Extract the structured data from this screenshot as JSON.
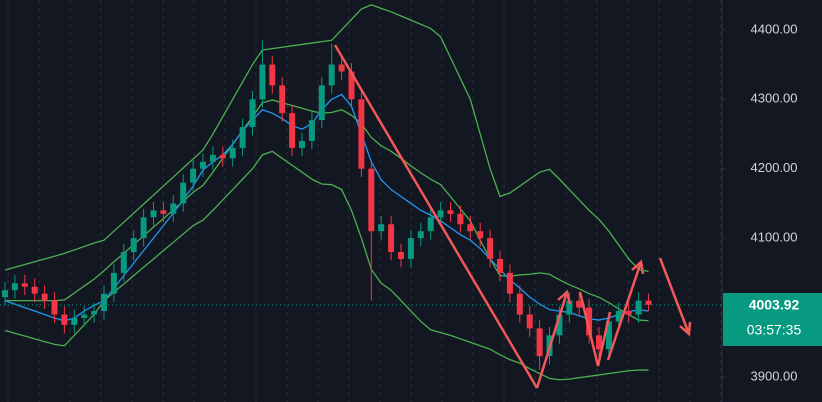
{
  "chart_data": {
    "type": "candlestick",
    "up_color": "#089981",
    "down_color": "#f23645",
    "ylim": [
      3864,
      4443
    ],
    "yticks": [
      {
        "value": 3900,
        "label": "3900.00"
      },
      {
        "value": 4100,
        "label": "4100.00"
      },
      {
        "value": 4200,
        "label": "4200.00"
      },
      {
        "value": 4300,
        "label": "4300.00"
      },
      {
        "value": 4400,
        "label": "4400.00"
      }
    ],
    "countdown": "03:57:35",
    "open": [
      4015,
      4025,
      4035,
      4030,
      4020,
      4010,
      3990,
      3975,
      3985,
      3990,
      3995,
      4020,
      4050,
      4080,
      4100,
      4130,
      4140,
      4135,
      4150,
      4180,
      4200,
      4210,
      4220,
      4215,
      4230,
      4260,
      4300,
      4350,
      4320,
      4280,
      4230,
      4240,
      4270,
      4320,
      4350,
      4340,
      4300,
      4200,
      4110,
      4120,
      4080,
      4070,
      4100,
      4110,
      4130,
      4140,
      4135,
      4120,
      4110,
      4100,
      4070,
      4050,
      4020,
      3990,
      3970,
      3930,
      3960,
      3990,
      4010,
      4000,
      3960,
      3940,
      3980,
      3995,
      3990,
      4010
    ],
    "high": [
      4037,
      4047,
      4047,
      4042,
      4032,
      4022,
      4002,
      3997,
      4002,
      4007,
      4032,
      4062,
      4092,
      4112,
      4142,
      4152,
      4152,
      4162,
      4192,
      4212,
      4222,
      4232,
      4232,
      4242,
      4272,
      4312,
      4385,
      4362,
      4332,
      4292,
      4252,
      4282,
      4332,
      4380,
      4362,
      4352,
      4312,
      4212,
      4132,
      4132,
      4092,
      4112,
      4122,
      4142,
      4152,
      4152,
      4147,
      4132,
      4122,
      4112,
      4082,
      4062,
      4032,
      4002,
      3982,
      3972,
      4002,
      4022,
      4022,
      4012,
      3972,
      3992,
      4007,
      4007,
      4022,
      4020
    ],
    "low": [
      4003,
      4013,
      4018,
      4008,
      3998,
      3978,
      3963,
      3963,
      3973,
      3978,
      3983,
      4008,
      4038,
      4068,
      4088,
      4118,
      4123,
      4123,
      4138,
      4168,
      4188,
      4198,
      4203,
      4203,
      4218,
      4248,
      4288,
      4308,
      4268,
      4218,
      4218,
      4228,
      4258,
      4308,
      4328,
      4288,
      4188,
      4010,
      4098,
      4068,
      4058,
      4058,
      4088,
      4098,
      4118,
      4123,
      4108,
      4098,
      4088,
      4058,
      4038,
      4008,
      3978,
      3958,
      3910,
      3918,
      3948,
      3978,
      3988,
      3948,
      3928,
      3928,
      3968,
      3978,
      3978,
      3995
    ],
    "close": [
      4025,
      4035,
      4030,
      4020,
      4010,
      3990,
      3975,
      3985,
      3990,
      3995,
      4020,
      4050,
      4080,
      4100,
      4130,
      4140,
      4135,
      4150,
      4180,
      4200,
      4210,
      4220,
      4215,
      4230,
      4260,
      4300,
      4350,
      4320,
      4280,
      4230,
      4240,
      4270,
      4320,
      4350,
      4340,
      4300,
      4200,
      4110,
      4120,
      4080,
      4070,
      4100,
      4110,
      4130,
      4140,
      4135,
      4120,
      4110,
      4100,
      4070,
      4050,
      4020,
      3990,
      3970,
      3930,
      3960,
      3990,
      4010,
      4000,
      3960,
      3940,
      3980,
      3995,
      3990,
      4010,
      4003.92
    ],
    "overlays": [
      {
        "color": "#4caf50",
        "values": [
          4054,
          4058,
          4062,
          4066,
          4070,
          4074,
          4078,
          4083,
          4088,
          4093,
          4097,
          4110,
          4123,
          4136,
          4149,
          4162,
          4175,
          4188,
          4201,
          4214,
          4227,
          4250,
          4275,
          4300,
          4325,
          4350,
          4371,
          4373,
          4375,
          4377,
          4379,
          4381,
          4383,
          4385,
          4400,
          4415,
          4430,
          4436,
          4431,
          4426,
          4420,
          4414,
          4408,
          4402,
          4390,
          4360,
          4330,
          4300,
          4250,
          4200,
          4160,
          4165,
          4175,
          4185,
          4195,
          4199,
          4185,
          4170,
          4155,
          4140,
          4127,
          4110,
          4090,
          4070,
          4055,
          4052
        ]
      },
      {
        "color": "#4caf50",
        "values": [
          4010,
          4010,
          4010,
          4010,
          4010,
          4010,
          4011,
          4021,
          4031,
          4041,
          4053,
          4066,
          4078,
          4091,
          4103,
          4116,
          4128,
          4141,
          4153,
          4166,
          4176,
          4195,
          4215,
          4235,
          4255,
          4275,
          4295,
          4299,
          4295,
          4291,
          4287,
          4283,
          4280,
          4281,
          4285,
          4277,
          4265,
          4245,
          4233,
          4225,
          4215,
          4204,
          4194,
          4185,
          4177,
          4160,
          4142,
          4125,
          4097,
          4070,
          4046,
          4045,
          4047,
          4048,
          4050,
          4048,
          4040,
          4033,
          4027,
          4020,
          4015,
          4007,
          3998,
          3990,
          3982,
          3981
        ]
      },
      {
        "color": "#4caf50",
        "values": [
          3967,
          3963,
          3959,
          3955,
          3951,
          3947,
          3945,
          3960,
          3975,
          3990,
          4010,
          4022,
          4034,
          4046,
          4058,
          4070,
          4082,
          4094,
          4106,
          4118,
          4126,
          4140,
          4155,
          4170,
          4185,
          4200,
          4220,
          4225,
          4215,
          4205,
          4195,
          4185,
          4178,
          4177,
          4170,
          4140,
          4100,
          4055,
          4035,
          4025,
          4010,
          3995,
          3980,
          3968,
          3964,
          3960,
          3955,
          3950,
          3945,
          3940,
          3932,
          3925,
          3920,
          3912,
          3905,
          3898,
          3896,
          3897,
          3899,
          3901,
          3903,
          3905,
          3907,
          3909,
          3910,
          3910
        ]
      },
      {
        "color": "#2196f3",
        "values": [
          4010,
          4005,
          4000,
          3995,
          3990,
          3985,
          3981,
          3985,
          3995,
          4003,
          4010,
          4028,
          4046,
          4064,
          4082,
          4100,
          4118,
          4136,
          4155,
          4175,
          4198,
          4210,
          4220,
          4235,
          4255,
          4270,
          4285,
          4280,
          4272,
          4262,
          4257,
          4265,
          4285,
          4300,
          4307,
          4290,
          4250,
          4210,
          4184,
          4170,
          4160,
          4150,
          4140,
          4133,
          4125,
          4115,
          4105,
          4097,
          4085,
          4070,
          4055,
          4040,
          4028,
          4015,
          4005,
          3997,
          3995,
          3993,
          3988,
          3984,
          3982,
          3985,
          3990,
          3994,
          3997,
          3995
        ]
      }
    ]
  }
}
